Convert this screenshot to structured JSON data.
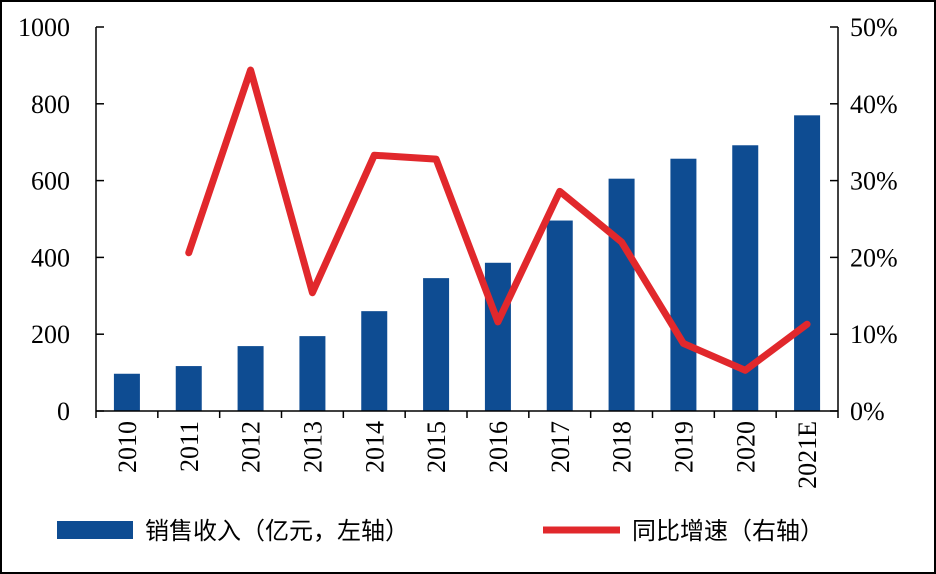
{
  "chart_data": {
    "type": "bar+line",
    "categories": [
      "2010",
      "2011",
      "2012",
      "2013",
      "2014",
      "2015",
      "2016",
      "2017",
      "2018",
      "2019",
      "2020",
      "2021E"
    ],
    "series": [
      {
        "name": "销售收入（亿元，左轴）",
        "type": "bar",
        "axis": "left",
        "color": "#0E4C92",
        "values": [
          97,
          117,
          169,
          195,
          260,
          346,
          386,
          496,
          605,
          657,
          692,
          770
        ]
      },
      {
        "name": "同比增速（右轴）",
        "type": "line",
        "axis": "right",
        "color": "#E1282C",
        "values": [
          null,
          20.6,
          44.4,
          15.4,
          33.3,
          32.8,
          11.6,
          28.6,
          22.0,
          8.8,
          5.3,
          11.3
        ]
      }
    ],
    "y_left": {
      "min": 0,
      "max": 1000,
      "ticks": [
        0,
        200,
        400,
        600,
        800,
        1000
      ],
      "tick_labels": [
        "0",
        "200",
        "400",
        "600",
        "800",
        "1000"
      ]
    },
    "y_right": {
      "min": 0,
      "max": 50,
      "ticks": [
        0,
        10,
        20,
        30,
        40,
        50
      ],
      "tick_labels": [
        "0%",
        "10%",
        "20%",
        "30%",
        "40%",
        "50%"
      ]
    },
    "grid": false,
    "legend_position": "bottom"
  }
}
